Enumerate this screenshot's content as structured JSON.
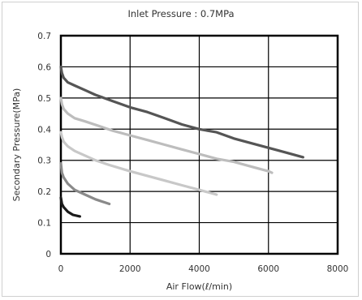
{
  "chart_data": {
    "type": "line",
    "title": "Inlet Pressure : 0.7MPa",
    "xlabel": "Air Flow(ℓ/min)",
    "ylabel": "Secondary Pressure(MPa)",
    "xlim": [
      0,
      8000
    ],
    "ylim": [
      0,
      0.7
    ],
    "xticks": [
      "0",
      "2000",
      "4000",
      "6000",
      "8000"
    ],
    "yticks": [
      "0",
      "0.1",
      "0.2",
      "0.3",
      "0.4",
      "0.5",
      "0.6",
      "0.7"
    ],
    "grid": true,
    "series": [
      {
        "color": "#555555",
        "x": [
          0,
          30,
          80,
          200,
          400,
          700,
          1000,
          1500,
          2000,
          2500,
          3000,
          3500,
          4000,
          4500,
          5000,
          5500,
          6000,
          6500,
          7000
        ],
        "y": [
          0.6,
          0.58,
          0.565,
          0.55,
          0.54,
          0.525,
          0.51,
          0.49,
          0.47,
          0.455,
          0.435,
          0.415,
          0.4,
          0.39,
          0.37,
          0.355,
          0.34,
          0.325,
          0.31
        ]
      },
      {
        "color": "#bdbdbd",
        "x": [
          0,
          30,
          80,
          200,
          400,
          700,
          1100,
          1500,
          2000,
          2500,
          3000,
          3500,
          4000,
          4500,
          5000,
          5500,
          6000,
          6100
        ],
        "y": [
          0.5,
          0.48,
          0.465,
          0.45,
          0.435,
          0.425,
          0.41,
          0.395,
          0.38,
          0.365,
          0.35,
          0.335,
          0.32,
          0.305,
          0.295,
          0.28,
          0.265,
          0.26
        ]
      },
      {
        "color": "#c8c8c8",
        "x": [
          0,
          30,
          80,
          200,
          400,
          700,
          1000,
          1400,
          2000,
          2500,
          3000,
          3500,
          4000,
          4500
        ],
        "y": [
          0.39,
          0.375,
          0.36,
          0.345,
          0.33,
          0.315,
          0.3,
          0.285,
          0.265,
          0.25,
          0.235,
          0.22,
          0.205,
          0.19
        ]
      },
      {
        "color": "#8a8a8a",
        "x": [
          0,
          30,
          80,
          200,
          400,
          700,
          1000,
          1400
        ],
        "y": [
          0.29,
          0.26,
          0.245,
          0.225,
          0.205,
          0.19,
          0.175,
          0.16
        ]
      },
      {
        "color": "#1a1a1a",
        "x": [
          0,
          30,
          80,
          200,
          350,
          550
        ],
        "y": [
          0.18,
          0.16,
          0.15,
          0.135,
          0.125,
          0.12
        ]
      }
    ]
  }
}
